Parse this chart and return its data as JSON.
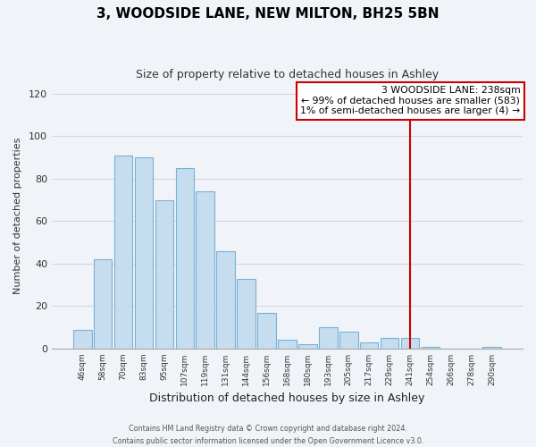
{
  "title": "3, WOODSIDE LANE, NEW MILTON, BH25 5BN",
  "subtitle": "Size of property relative to detached houses in Ashley",
  "xlabel": "Distribution of detached houses by size in Ashley",
  "ylabel": "Number of detached properties",
  "footer_line1": "Contains HM Land Registry data © Crown copyright and database right 2024.",
  "footer_line2": "Contains public sector information licensed under the Open Government Licence v3.0.",
  "bar_labels": [
    "46sqm",
    "58sqm",
    "70sqm",
    "83sqm",
    "95sqm",
    "107sqm",
    "119sqm",
    "131sqm",
    "144sqm",
    "156sqm",
    "168sqm",
    "180sqm",
    "193sqm",
    "205sqm",
    "217sqm",
    "229sqm",
    "241sqm",
    "254sqm",
    "266sqm",
    "278sqm",
    "290sqm"
  ],
  "bar_values": [
    9,
    42,
    91,
    90,
    70,
    85,
    74,
    46,
    33,
    17,
    4,
    2,
    10,
    8,
    3,
    5,
    5,
    1,
    0,
    0,
    1
  ],
  "bar_color": "#c5ddef",
  "bar_edge_color": "#7ab0d4",
  "grid_color": "#d0d8e4",
  "background_color": "#f0f4f8",
  "vline_index": 16,
  "vline_color": "#cc0000",
  "annotation_title": "3 WOODSIDE LANE: 238sqm",
  "annotation_line1": "← 99% of detached houses are smaller (583)",
  "annotation_line2": "1% of semi-detached houses are larger (4) →",
  "annotation_box_color": "#cc0000",
  "ylim": [
    0,
    125
  ],
  "yticks": [
    0,
    20,
    40,
    60,
    80,
    100,
    120
  ]
}
